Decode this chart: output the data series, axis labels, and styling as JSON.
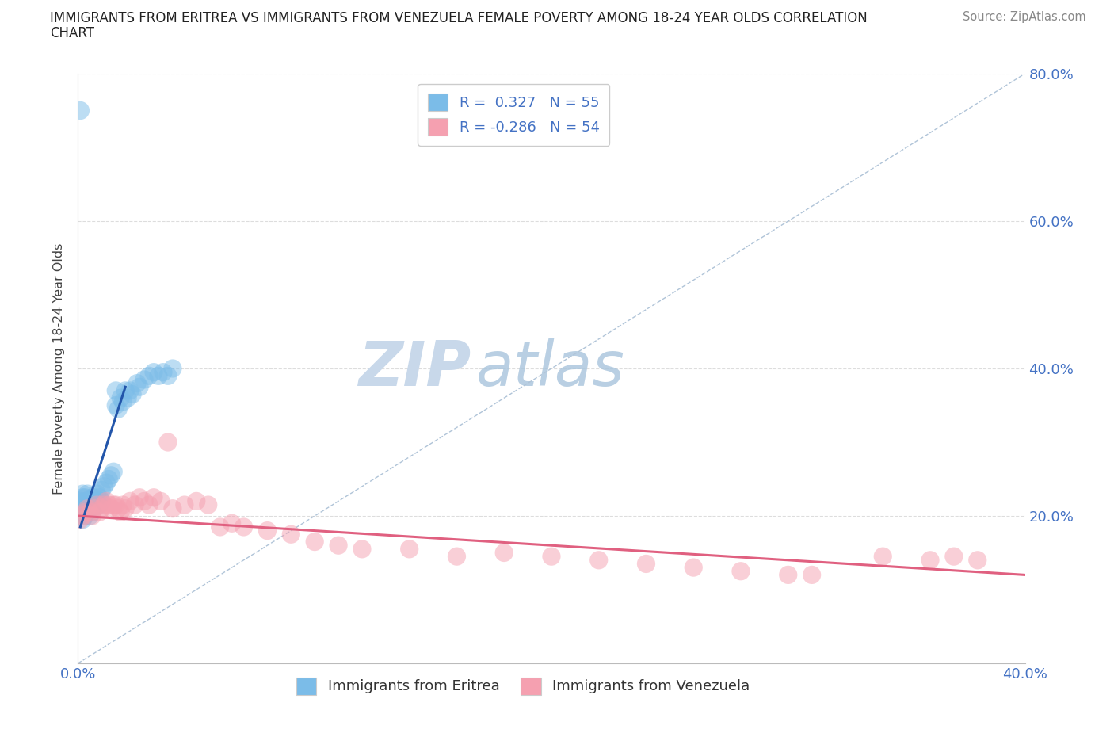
{
  "title_line1": "IMMIGRANTS FROM ERITREA VS IMMIGRANTS FROM VENEZUELA FEMALE POVERTY AMONG 18-24 YEAR OLDS CORRELATION",
  "title_line2": "CHART",
  "source": "Source: ZipAtlas.com",
  "ylabel": "Female Poverty Among 18-24 Year Olds",
  "xlim": [
    0.0,
    0.4
  ],
  "ylim": [
    0.0,
    0.8
  ],
  "legend_eritrea_r": "0.327",
  "legend_eritrea_n": "55",
  "legend_venezuela_r": "-0.286",
  "legend_venezuela_n": "54",
  "eritrea_color": "#7bbce8",
  "venezuela_color": "#f5a0b0",
  "eritrea_line_color": "#2255aa",
  "venezuela_line_color": "#e06080",
  "background_color": "#ffffff",
  "grid_color": "#dddddd",
  "watermark_zip": "ZIP",
  "watermark_atlas": "atlas",
  "watermark_color": "#c8d8ea",
  "tick_color": "#4472c4",
  "eritrea_x": [
    0.001,
    0.001,
    0.001,
    0.001,
    0.002,
    0.002,
    0.002,
    0.002,
    0.002,
    0.003,
    0.003,
    0.003,
    0.003,
    0.004,
    0.004,
    0.004,
    0.004,
    0.005,
    0.005,
    0.005,
    0.006,
    0.006,
    0.006,
    0.007,
    0.007,
    0.008,
    0.008,
    0.009,
    0.009,
    0.01,
    0.01,
    0.011,
    0.012,
    0.013,
    0.014,
    0.015,
    0.016,
    0.016,
    0.017,
    0.018,
    0.019,
    0.02,
    0.021,
    0.022,
    0.023,
    0.025,
    0.026,
    0.028,
    0.03,
    0.032,
    0.034,
    0.036,
    0.038,
    0.04,
    0.001
  ],
  "eritrea_y": [
    0.2,
    0.21,
    0.22,
    0.215,
    0.195,
    0.205,
    0.215,
    0.225,
    0.23,
    0.2,
    0.21,
    0.22,
    0.225,
    0.205,
    0.215,
    0.22,
    0.23,
    0.2,
    0.21,
    0.22,
    0.205,
    0.215,
    0.225,
    0.215,
    0.225,
    0.22,
    0.23,
    0.215,
    0.225,
    0.22,
    0.235,
    0.24,
    0.245,
    0.25,
    0.255,
    0.26,
    0.35,
    0.37,
    0.345,
    0.36,
    0.355,
    0.37,
    0.36,
    0.37,
    0.365,
    0.38,
    0.375,
    0.385,
    0.39,
    0.395,
    0.39,
    0.395,
    0.39,
    0.4,
    0.75
  ],
  "venezuela_x": [
    0.001,
    0.002,
    0.003,
    0.004,
    0.005,
    0.006,
    0.007,
    0.008,
    0.009,
    0.01,
    0.011,
    0.012,
    0.013,
    0.014,
    0.015,
    0.016,
    0.017,
    0.018,
    0.019,
    0.02,
    0.022,
    0.024,
    0.026,
    0.028,
    0.03,
    0.032,
    0.035,
    0.038,
    0.04,
    0.045,
    0.05,
    0.055,
    0.06,
    0.065,
    0.07,
    0.08,
    0.09,
    0.1,
    0.11,
    0.12,
    0.14,
    0.16,
    0.18,
    0.2,
    0.22,
    0.24,
    0.26,
    0.28,
    0.31,
    0.34,
    0.36,
    0.37,
    0.38,
    0.3
  ],
  "venezuela_y": [
    0.195,
    0.2,
    0.205,
    0.21,
    0.205,
    0.2,
    0.21,
    0.215,
    0.205,
    0.21,
    0.215,
    0.22,
    0.215,
    0.21,
    0.215,
    0.215,
    0.21,
    0.205,
    0.215,
    0.21,
    0.22,
    0.215,
    0.225,
    0.22,
    0.215,
    0.225,
    0.22,
    0.3,
    0.21,
    0.215,
    0.22,
    0.215,
    0.185,
    0.19,
    0.185,
    0.18,
    0.175,
    0.165,
    0.16,
    0.155,
    0.155,
    0.145,
    0.15,
    0.145,
    0.14,
    0.135,
    0.13,
    0.125,
    0.12,
    0.145,
    0.14,
    0.145,
    0.14,
    0.12
  ]
}
